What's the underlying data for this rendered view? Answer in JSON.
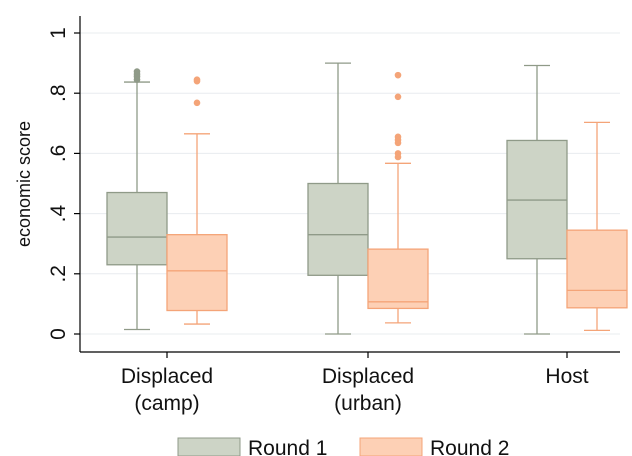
{
  "chart_data": {
    "type": "box",
    "title": "",
    "xlabel": "",
    "ylabel": "economic score",
    "ylim": [
      0,
      1
    ],
    "yticks": [
      {
        "value": 0,
        "label": "0"
      },
      {
        "value": 0.2,
        "label": ".2"
      },
      {
        "value": 0.4,
        "label": ".4"
      },
      {
        "value": 0.6,
        "label": ".6"
      },
      {
        "value": 0.8,
        "label": ".8"
      },
      {
        "value": 1,
        "label": "1"
      }
    ],
    "categories": [
      {
        "line1": "Displaced",
        "line2": "(camp)"
      },
      {
        "line1": "Displaced",
        "line2": "(urban)"
      },
      {
        "line1": "Host",
        "line2": ""
      }
    ],
    "grid": true,
    "legend_position": "bottom",
    "series": [
      {
        "name": "Round 1",
        "fill": "#cdd4c6",
        "stroke": "#8f9a88",
        "boxes": [
          {
            "min": 0.015,
            "q1": 0.23,
            "median": 0.322,
            "q3": 0.47,
            "max": 0.837,
            "outliers": [
              0.845,
              0.855,
              0.863,
              0.872
            ]
          },
          {
            "min": 0.0,
            "q1": 0.195,
            "median": 0.33,
            "q3": 0.5,
            "max": 0.9,
            "outliers": []
          },
          {
            "min": 0.0,
            "q1": 0.25,
            "median": 0.445,
            "q3": 0.643,
            "max": 0.892,
            "outliers": []
          }
        ]
      },
      {
        "name": "Round 2",
        "fill": "#fdd0b5",
        "stroke": "#f4a478",
        "boxes": [
          {
            "min": 0.033,
            "q1": 0.078,
            "median": 0.21,
            "q3": 0.33,
            "max": 0.665,
            "outliers": [
              0.768,
              0.84,
              0.845
            ]
          },
          {
            "min": 0.037,
            "q1": 0.085,
            "median": 0.107,
            "q3": 0.282,
            "max": 0.567,
            "outliers": [
              0.588,
              0.6,
              0.635,
              0.645,
              0.655,
              0.788,
              0.86
            ]
          },
          {
            "min": 0.012,
            "q1": 0.087,
            "median": 0.145,
            "q3": 0.345,
            "max": 0.703,
            "outliers": []
          }
        ]
      }
    ]
  }
}
